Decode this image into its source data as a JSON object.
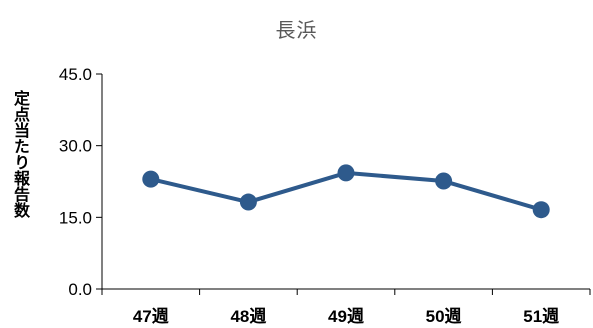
{
  "chart_data": {
    "type": "line",
    "title": "長浜",
    "xlabel": "",
    "ylabel": "定点当たり報告数",
    "categories": [
      "47週",
      "48週",
      "49週",
      "50週",
      "51週"
    ],
    "ytick_labels": [
      "0.0",
      "15.0",
      "30.0",
      "45.0"
    ],
    "ylim": [
      0,
      45
    ],
    "series": [
      {
        "values": [
          23.0,
          18.2,
          24.3,
          22.6,
          16.6
        ]
      }
    ],
    "grid": false,
    "legend": "none",
    "colors": {
      "line": "#2e5a8c",
      "marker": "#2e5a8c",
      "axis": "#000000",
      "title": "#595959"
    }
  }
}
